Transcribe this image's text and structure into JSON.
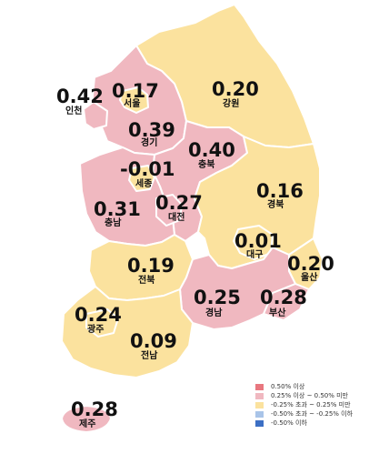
{
  "colors": {
    "over_050": "#e8777f",
    "from_025_to_050": "#f0b8c0",
    "from_m025_to_025": "#fbe29e",
    "from_m050_to_m025": "#a9c4e8",
    "under_m050": "#3c6fc4",
    "border": "#ffffff"
  },
  "regions": [
    {
      "id": "incheon",
      "name": "인천",
      "value": "0.42",
      "category": "from_025_to_050"
    },
    {
      "id": "seoul",
      "name": "서울",
      "value": "0.17",
      "category": "from_m025_to_025"
    },
    {
      "id": "gyeonggi",
      "name": "경기",
      "value": "0.39",
      "category": "from_025_to_050"
    },
    {
      "id": "gangwon",
      "name": "강원",
      "value": "0.20",
      "category": "from_m025_to_025"
    },
    {
      "id": "chungbuk",
      "name": "충북",
      "value": "0.40",
      "category": "from_025_to_050"
    },
    {
      "id": "sejong",
      "name": "세종",
      "value": "-0.01",
      "category": "from_m025_to_025"
    },
    {
      "id": "chungnam",
      "name": "충남",
      "value": "0.31",
      "category": "from_025_to_050"
    },
    {
      "id": "daejeon",
      "name": "대전",
      "value": "0.27",
      "category": "from_025_to_050"
    },
    {
      "id": "gyeongbuk",
      "name": "경북",
      "value": "0.16",
      "category": "from_m025_to_025"
    },
    {
      "id": "daegu",
      "name": "대구",
      "value": "0.01",
      "category": "from_m025_to_025"
    },
    {
      "id": "ulsan",
      "name": "울산",
      "value": "0.20",
      "category": "from_m025_to_025"
    },
    {
      "id": "jeonbuk",
      "name": "전북",
      "value": "0.19",
      "category": "from_m025_to_025"
    },
    {
      "id": "gyeongnam",
      "name": "경남",
      "value": "0.25",
      "category": "from_025_to_050"
    },
    {
      "id": "busan",
      "name": "부산",
      "value": "0.28",
      "category": "from_025_to_050"
    },
    {
      "id": "gwangju",
      "name": "광주",
      "value": "0.24",
      "category": "from_m025_to_025"
    },
    {
      "id": "jeonnam",
      "name": "전남",
      "value": "0.09",
      "category": "from_m025_to_025"
    },
    {
      "id": "jeju",
      "name": "제주",
      "value": "0.28",
      "category": "from_025_to_050"
    }
  ],
  "legend": [
    {
      "category": "over_050",
      "label": "0.50% 이상"
    },
    {
      "category": "from_025_to_050",
      "label": "0.25% 이상 ~ 0.50% 미만"
    },
    {
      "category": "from_m025_to_025",
      "label": "-0.25% 초과 ~ 0.25% 미만"
    },
    {
      "category": "from_m050_to_m025",
      "label": "-0.50% 초과 ~ -0.25% 이하"
    },
    {
      "category": "under_m050",
      "label": "-0.50% 이하"
    }
  ]
}
